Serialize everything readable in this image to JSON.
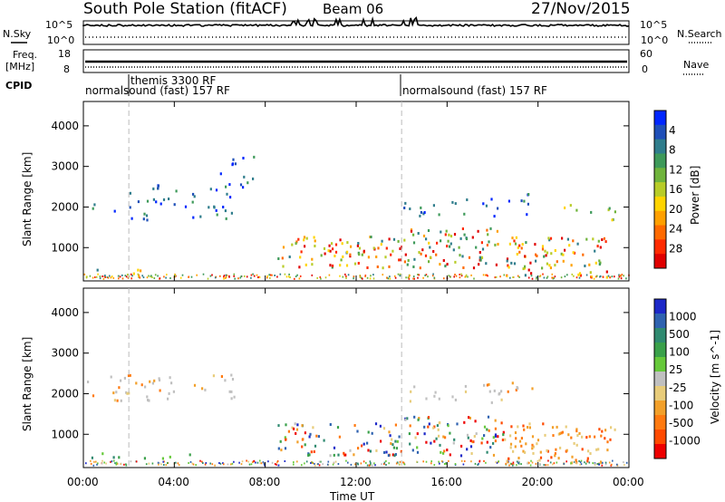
{
  "header": {
    "title": "South Pole Station (fitACF)",
    "beam": "Beam 06",
    "date": "27/Nov/2015"
  },
  "top_panels": {
    "nsky": {
      "label": "N.Sky",
      "top_tick": "10^5",
      "bottom_tick": "10^0"
    },
    "nsearch": {
      "label": "N.Search",
      "top_tick": "10^5",
      "bottom_tick": "10^0"
    },
    "freq": {
      "label_line1": "Freq.",
      "label_line2": "[MHz]",
      "ticks": [
        "18",
        "8"
      ]
    },
    "nave": {
      "label": "Nave",
      "ticks": [
        "60",
        "0"
      ]
    },
    "cpid": {
      "label": "CPID",
      "segments": [
        {
          "name": "normalsound (fast) 157 RF",
          "start_hour": 0
        },
        {
          "name": "themis 3300 RF",
          "start_hour": 2
        },
        {
          "name": "normalsound (fast) 157 RF",
          "start_hour": 14
        }
      ]
    }
  },
  "x_axis": {
    "label": "Time UT",
    "ticks": [
      "00:00",
      "04:00",
      "08:00",
      "12:00",
      "16:00",
      "20:00",
      "00:00"
    ]
  },
  "chart_data": [
    {
      "type": "heatmap",
      "panel": "power",
      "ylabel": "Slant Range [km]",
      "yticks": [
        1000,
        2000,
        3000,
        4000
      ],
      "ylim": [
        180,
        4600
      ],
      "xlim": [
        0,
        24
      ],
      "colorbar": {
        "label": "Power [dB]",
        "ticks": [
          "4",
          "8",
          "12",
          "16",
          "20",
          "24",
          "28"
        ],
        "colors": [
          "#0026ff",
          "#1f4fb8",
          "#2f7d8c",
          "#3e9a5a",
          "#6fb43c",
          "#b8cc28",
          "#ffd400",
          "#ffa000",
          "#ff6a00",
          "#ff2a00",
          "#e00000"
        ]
      },
      "regions": [
        {
          "t0": 0.0,
          "t1": 2.5,
          "r0": 380,
          "r1": 560,
          "level": "low-mid"
        },
        {
          "t0": 0.0,
          "t1": 1.4,
          "r0": 1900,
          "r1": 2200,
          "level": "low"
        },
        {
          "t0": 2.0,
          "t1": 7.0,
          "r0": 1700,
          "r1": 2600,
          "level": "low"
        },
        {
          "t0": 6.0,
          "t1": 7.5,
          "r0": 2400,
          "r1": 3300,
          "level": "low"
        },
        {
          "t0": 8.5,
          "t1": 14.0,
          "r0": 500,
          "r1": 1300,
          "level": "high"
        },
        {
          "t0": 14.0,
          "t1": 18.2,
          "r0": 500,
          "r1": 1500,
          "level": "high"
        },
        {
          "t0": 14.0,
          "t1": 17.0,
          "r0": 1800,
          "r1": 2300,
          "level": "low"
        },
        {
          "t0": 17.5,
          "t1": 19.8,
          "r0": 1800,
          "r1": 2400,
          "level": "low"
        },
        {
          "t0": 18.5,
          "t1": 23.0,
          "r0": 300,
          "r1": 1300,
          "level": "high"
        },
        {
          "t0": 21.0,
          "t1": 23.5,
          "r0": 1700,
          "r1": 2100,
          "level": "mid"
        }
      ]
    },
    {
      "type": "heatmap",
      "panel": "velocity",
      "ylabel": "Slant Range [km]",
      "yticks": [
        1000,
        2000,
        3000,
        4000
      ],
      "ylim": [
        180,
        4600
      ],
      "xlim": [
        0,
        24
      ],
      "colorbar": {
        "label": "Velocity [m s^-1]",
        "ticks": [
          "1000",
          "500",
          "100",
          "25",
          "-25",
          "-100",
          "-500",
          "-1000"
        ],
        "colors": [
          "#1c28c8",
          "#2e62b0",
          "#2f8a70",
          "#3aa14a",
          "#66c93a",
          "#c0c0c0",
          "#e8cc7a",
          "#f2a02a",
          "#ff7a10",
          "#ff4a00",
          "#ee0000"
        ]
      },
      "regions": [
        {
          "t0": 0.0,
          "t1": 5.0,
          "r0": 380,
          "r1": 560,
          "level": "positive"
        },
        {
          "t0": 0.0,
          "t1": 7.0,
          "r0": 1800,
          "r1": 2500,
          "level": "near-zero"
        },
        {
          "t0": 8.5,
          "t1": 14.0,
          "r0": 500,
          "r1": 1300,
          "level": "mixed"
        },
        {
          "t0": 14.0,
          "t1": 18.5,
          "r0": 500,
          "r1": 1500,
          "level": "mixed"
        },
        {
          "t0": 14.0,
          "t1": 19.8,
          "r0": 1800,
          "r1": 2300,
          "level": "near-zero"
        },
        {
          "t0": 18.5,
          "t1": 23.5,
          "r0": 300,
          "r1": 1300,
          "level": "negative"
        }
      ]
    }
  ]
}
